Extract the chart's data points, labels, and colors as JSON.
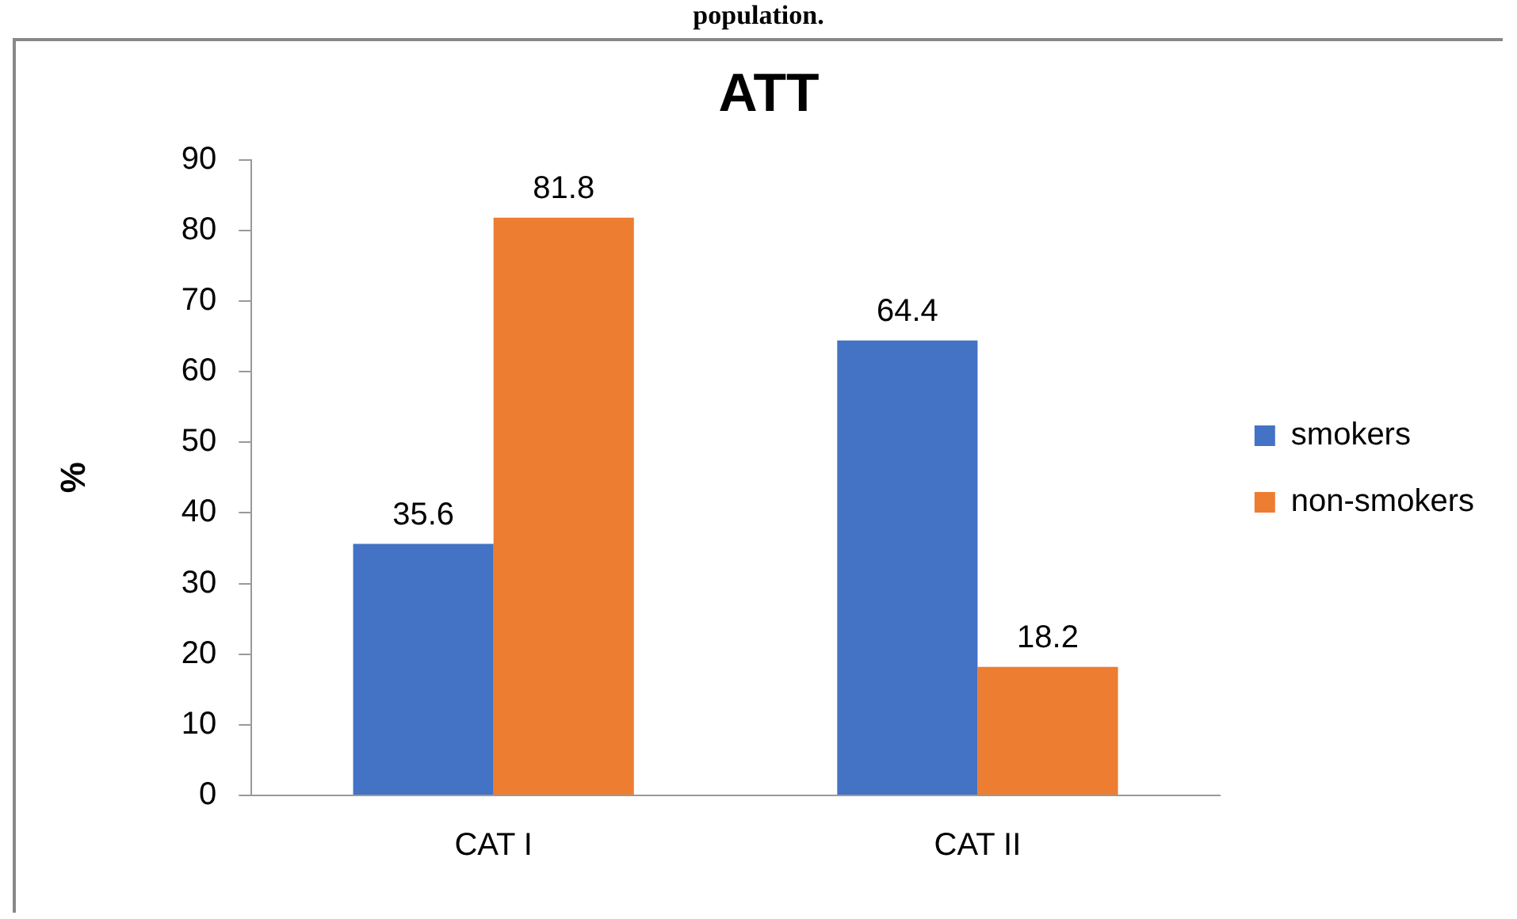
{
  "chart_data": {
    "type": "bar",
    "title": "ATT",
    "ylabel": "%",
    "annotations": [
      "population."
    ],
    "categories": [
      "CAT I",
      "CAT II"
    ],
    "series": [
      {
        "name": "smokers",
        "color": "#4472c4",
        "values": [
          35.6,
          64.4
        ]
      },
      {
        "name": "non-smokers",
        "color": "#ed7d31",
        "values": [
          81.8,
          18.2
        ]
      }
    ],
    "ylim": [
      0,
      90
    ],
    "yticks": [
      0,
      10,
      20,
      30,
      40,
      50,
      60,
      70,
      80,
      90
    ],
    "grid": false,
    "legend": "right",
    "data_labels": true
  }
}
